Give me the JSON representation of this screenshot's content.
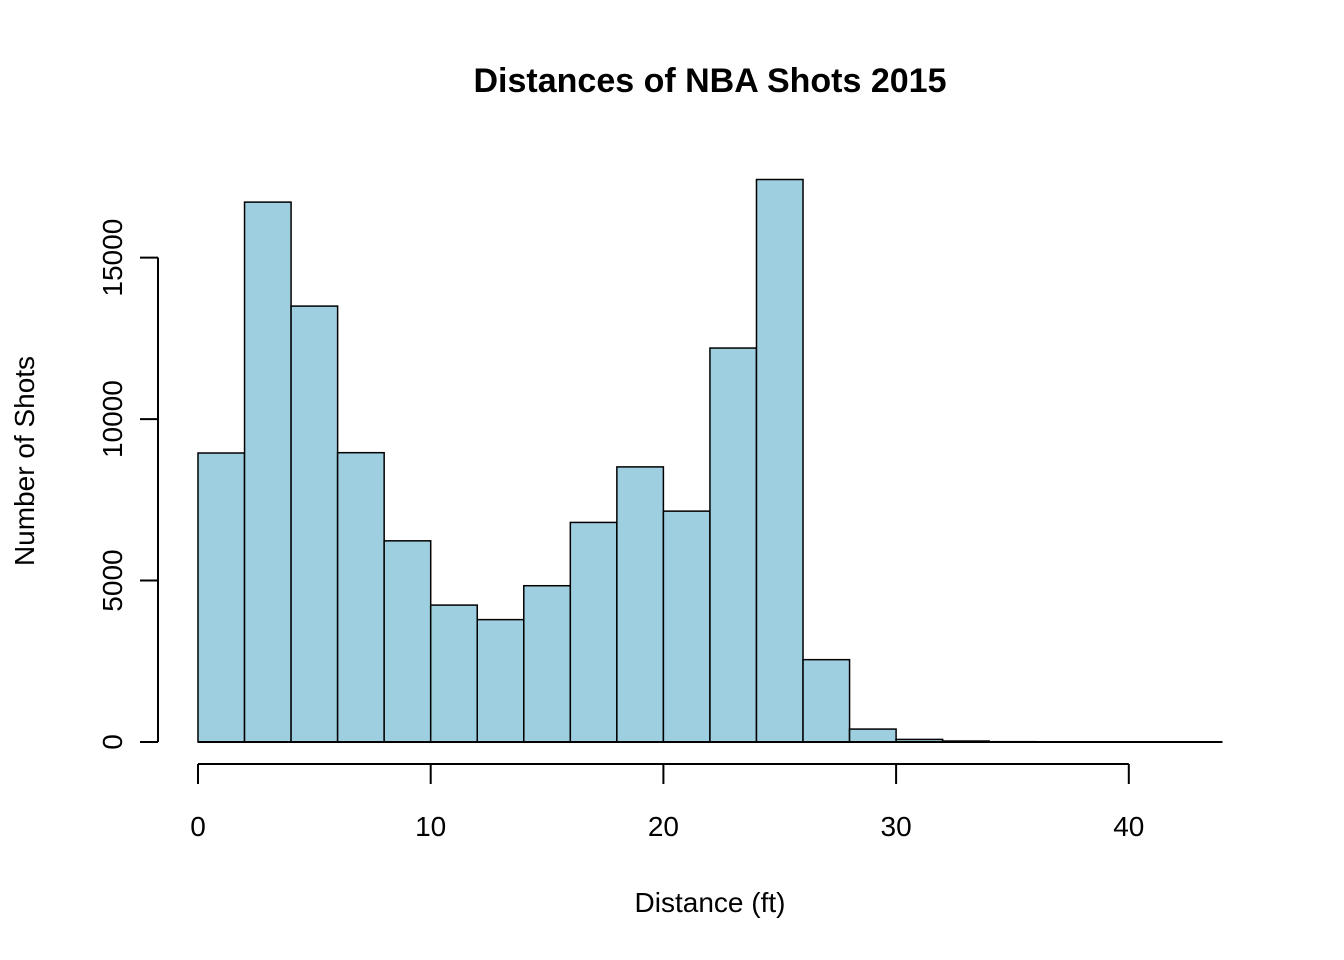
{
  "chart_data": {
    "type": "bar",
    "subtype": "histogram",
    "title": "Distances of NBA Shots 2015",
    "xlabel": "Distance (ft)",
    "ylabel": "Number of Shots",
    "bar_color": "#9ecfe0",
    "bin_width": 2,
    "bins": [
      {
        "start": 0,
        "end": 2,
        "count": 8950
      },
      {
        "start": 2,
        "end": 4,
        "count": 16720
      },
      {
        "start": 4,
        "end": 6,
        "count": 13500
      },
      {
        "start": 6,
        "end": 8,
        "count": 8960
      },
      {
        "start": 8,
        "end": 10,
        "count": 6230
      },
      {
        "start": 10,
        "end": 12,
        "count": 4240
      },
      {
        "start": 12,
        "end": 14,
        "count": 3790
      },
      {
        "start": 14,
        "end": 16,
        "count": 4840
      },
      {
        "start": 16,
        "end": 18,
        "count": 6800
      },
      {
        "start": 18,
        "end": 20,
        "count": 8520
      },
      {
        "start": 20,
        "end": 22,
        "count": 7150
      },
      {
        "start": 22,
        "end": 24,
        "count": 12200
      },
      {
        "start": 24,
        "end": 26,
        "count": 17420
      },
      {
        "start": 26,
        "end": 28,
        "count": 2550
      },
      {
        "start": 28,
        "end": 30,
        "count": 400
      },
      {
        "start": 30,
        "end": 32,
        "count": 80
      },
      {
        "start": 32,
        "end": 34,
        "count": 30
      },
      {
        "start": 34,
        "end": 36,
        "count": 10
      },
      {
        "start": 36,
        "end": 38,
        "count": 5
      },
      {
        "start": 38,
        "end": 40,
        "count": 3
      },
      {
        "start": 40,
        "end": 42,
        "count": 2
      },
      {
        "start": 42,
        "end": 44,
        "count": 1
      }
    ],
    "xlim": [
      0,
      44
    ],
    "ylim": [
      0,
      17420
    ],
    "x_ticks": [
      0,
      10,
      20,
      30,
      40
    ],
    "y_ticks": [
      0,
      5000,
      10000,
      15000
    ],
    "grid": false,
    "legend": "none"
  }
}
